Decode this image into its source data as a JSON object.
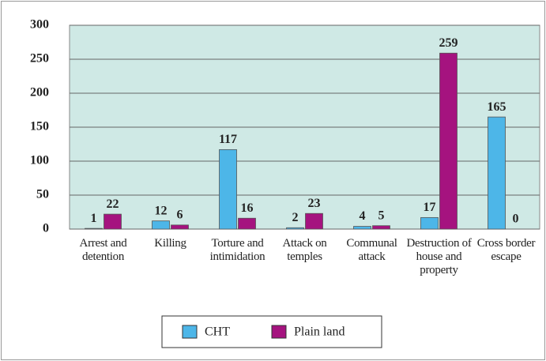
{
  "chart_data": {
    "type": "bar",
    "categories": [
      "Arrest and detention",
      "Killing",
      "Torture and intimidation",
      "Attack on temples",
      "Communal attack",
      "Destruction of house and property",
      "Cross border escape"
    ],
    "series": [
      {
        "name": "CHT",
        "color": "#4db6e8",
        "values": [
          1,
          12,
          117,
          2,
          4,
          17,
          165
        ]
      },
      {
        "name": "Plain land",
        "color": "#a5137f",
        "values": [
          22,
          6,
          16,
          23,
          5,
          259,
          0
        ]
      }
    ],
    "ylim": [
      0,
      300
    ],
    "yticks": [
      0,
      50,
      100,
      150,
      200,
      250,
      300
    ],
    "grid": true,
    "plot_background": "#cfe9e5",
    "legend": "bottom"
  }
}
